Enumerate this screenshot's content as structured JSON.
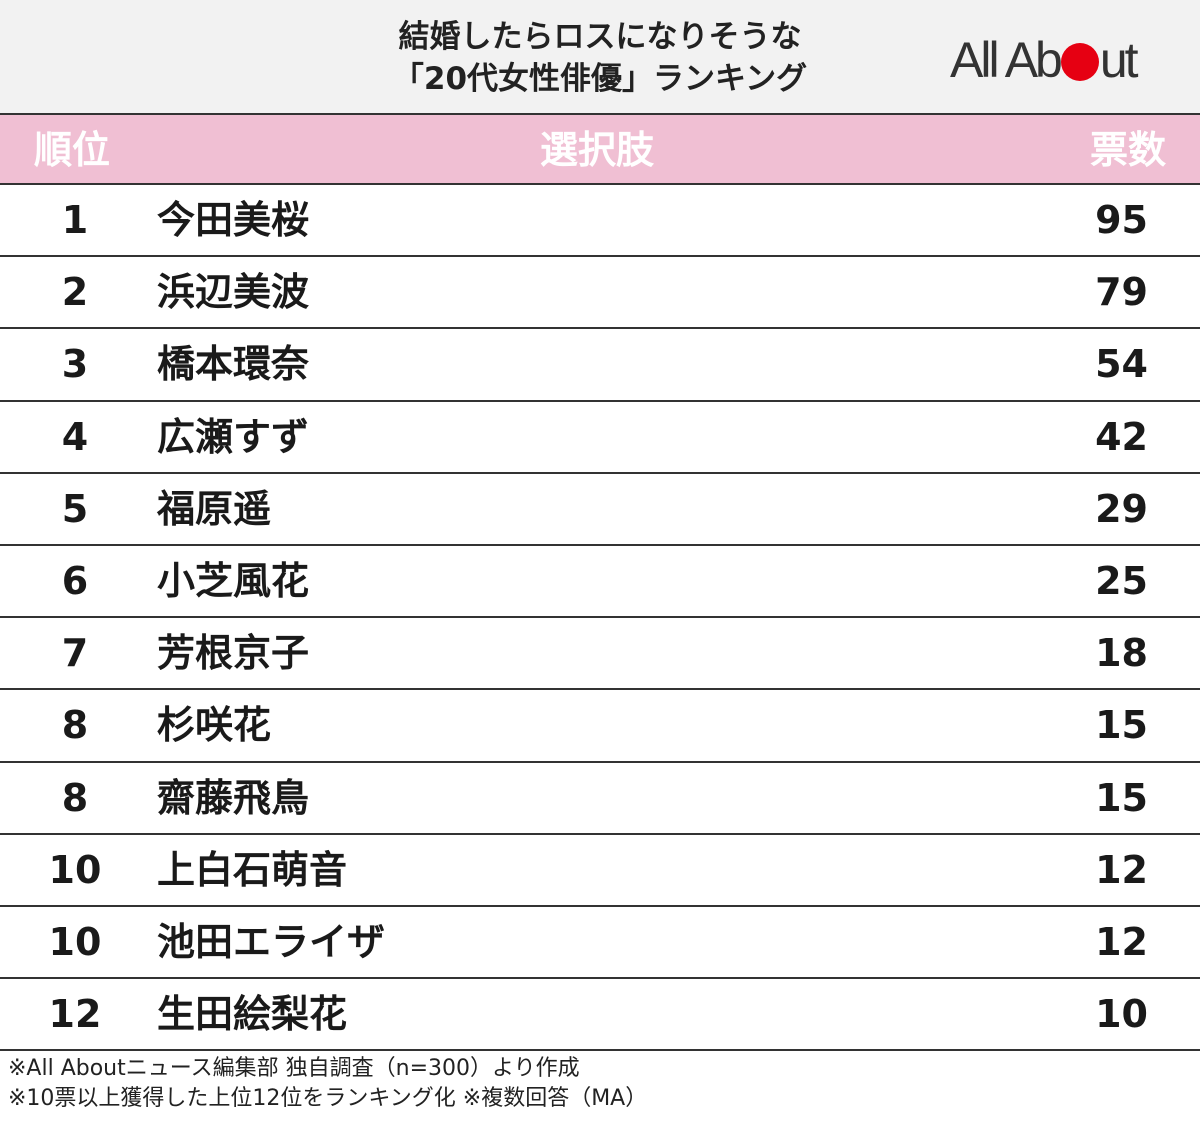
{
  "title": {
    "line1": "結婚したらロスになりそうな",
    "line2": "「20代女性俳優」ランキング"
  },
  "logo": {
    "part1": "All Ab",
    "part2": "ut",
    "dot_color": "#e60012"
  },
  "columns": {
    "rank": "順位",
    "name": "選択肢",
    "votes": "票数"
  },
  "colors": {
    "header_bg": "#f0bfd3",
    "title_bg": "#f2f2f2"
  },
  "chart_data": {
    "type": "table",
    "columns": [
      "順位",
      "選択肢",
      "票数"
    ],
    "rows": [
      {
        "rank": "1",
        "name": "今田美桜",
        "votes": "95"
      },
      {
        "rank": "2",
        "name": "浜辺美波",
        "votes": "79"
      },
      {
        "rank": "3",
        "name": "橋本環奈",
        "votes": "54"
      },
      {
        "rank": "4",
        "name": "広瀬すず",
        "votes": "42"
      },
      {
        "rank": "5",
        "name": "福原遥",
        "votes": "29"
      },
      {
        "rank": "6",
        "name": "小芝風花",
        "votes": "25"
      },
      {
        "rank": "7",
        "name": "芳根京子",
        "votes": "18"
      },
      {
        "rank": "8",
        "name": "杉咲花",
        "votes": "15"
      },
      {
        "rank": "8",
        "name": "齋藤飛鳥",
        "votes": "15"
      },
      {
        "rank": "10",
        "name": "上白石萌音",
        "votes": "12"
      },
      {
        "rank": "10",
        "name": "池田エライザ",
        "votes": "12"
      },
      {
        "rank": "12",
        "name": "生田絵梨花",
        "votes": "10"
      }
    ]
  },
  "notes": {
    "line1": "※All Aboutニュース編集部 独自調査（n=300）より作成",
    "line2": "※10票以上獲得した上位12位をランキング化 ※複数回答（MA）"
  }
}
